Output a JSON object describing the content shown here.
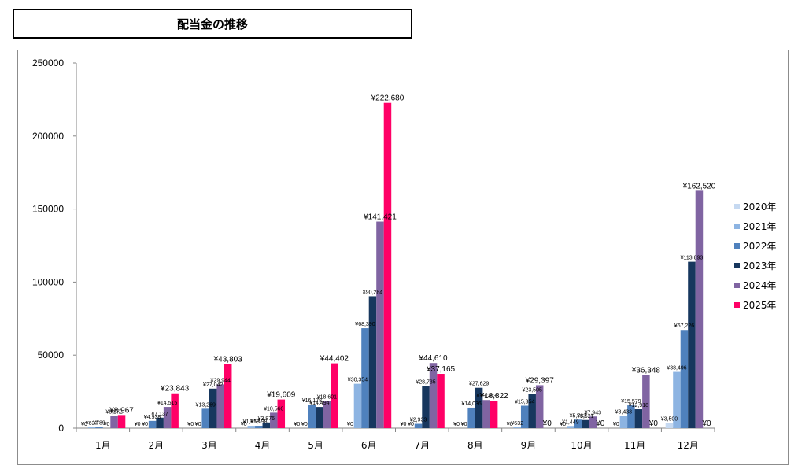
{
  "page": {
    "title": "配当金の推移"
  },
  "chart_data": {
    "type": "bar",
    "title": "",
    "xlabel": "",
    "ylabel": "",
    "ylim": [
      0,
      250000
    ],
    "yticks": [
      "0",
      "50000",
      "100000",
      "150000",
      "200000",
      "250000"
    ],
    "grid": false,
    "legend_position": "right",
    "categories": [
      "1月",
      "2月",
      "3月",
      "4月",
      "5月",
      "6月",
      "7月",
      "8月",
      "9月",
      "10月",
      "11月",
      "12月"
    ],
    "series": [
      {
        "name": "2020年",
        "color": "#c6d9f1",
        "values": [
          0,
          0,
          0,
          0,
          0,
          0,
          0,
          0,
          0,
          0,
          0,
          3500
        ],
        "labels": [
          "¥0",
          "¥0",
          "¥0",
          "¥0",
          "¥0",
          "¥0",
          "¥0",
          "¥0",
          "¥0",
          "¥0",
          "¥0",
          "¥3,500"
        ]
      },
      {
        "name": "2021年",
        "color": "#8db4e2",
        "values": [
          637,
          0,
          0,
          1558,
          0,
          30354,
          0,
          0,
          632,
          1449,
          8433,
          38496
        ],
        "labels": [
          "¥637",
          "¥0",
          "¥0",
          "¥1,558",
          "¥0",
          "¥30,354",
          "¥0",
          "¥0",
          "¥632",
          "¥1,449",
          "¥8,433",
          "¥38,496"
        ]
      },
      {
        "name": "2022年",
        "color": "#4f81bd",
        "values": [
          789,
          4938,
          13269,
          1598,
          16178,
          68390,
          2933,
          14036,
          15354,
          5783,
          15579,
          67226
        ],
        "labels": [
          "¥789",
          "¥4,938",
          "¥13,269",
          "¥1,598",
          "¥16,178",
          "¥68,390",
          "¥2,933",
          "¥14,036",
          "¥15,354",
          "¥5,783",
          "¥15,579",
          "¥67,226"
        ]
      },
      {
        "name": "2023年",
        "color": "#17375e",
        "values": [
          0,
          7137,
          27042,
          3876,
          14494,
          90284,
          28735,
          27629,
          23505,
          5521,
          12918,
          113893
        ],
        "labels": [
          "¥0",
          "¥7,137",
          "¥27,042",
          "¥3,876",
          "¥14,494",
          "¥90,284",
          "¥28,735",
          "¥27,629",
          "¥23,505",
          "¥5,521",
          "¥12,918",
          "¥113,893"
        ]
      },
      {
        "name": "2024年",
        "color": "#8064a2",
        "values": [
          8272,
          14515,
          29944,
          10560,
          18601,
          141421,
          44610,
          19263,
          29397,
          7943,
          36348,
          162520
        ],
        "labels": [
          "¥8,272",
          "¥14,515",
          "¥29,944",
          "¥10,560",
          "¥18,601",
          "¥141,421",
          "¥44,610",
          "¥19,263",
          "¥29,397",
          "¥7,943",
          "¥36,348",
          "¥162,520"
        ]
      },
      {
        "name": "2025年",
        "color": "#ff0066",
        "values": [
          8967,
          23843,
          43803,
          19609,
          44402,
          222680,
          37165,
          18822,
          0,
          0,
          0,
          0
        ],
        "labels": [
          "¥8,967",
          "¥23,843",
          "¥43,803",
          "¥19,609",
          "¥44,402",
          "¥222,680",
          "¥37,165",
          "¥18,822",
          "¥0",
          "¥0",
          "¥0",
          "¥0"
        ]
      }
    ]
  }
}
